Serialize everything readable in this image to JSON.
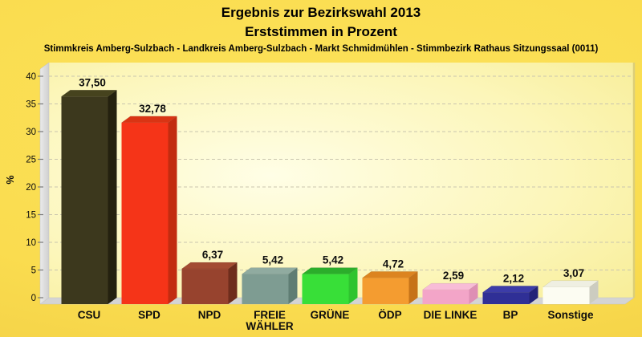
{
  "header": {
    "title": "Ergebnis zur Bezirkswahl 2013",
    "subtitle": "Erststimmen in Prozent",
    "description": "Stimmkreis Amberg-Sulzbach - Landkreis Amberg-Sulzbach - Markt Schmidmühlen - Stimmbezirk Rathaus Sitzungssaal (0011)"
  },
  "chart_data": {
    "type": "bar",
    "style": "3d-column",
    "title": "Ergebnis zur Bezirkswahl 2013",
    "subtitle": "Erststimmen in Prozent",
    "annotation": "Stimmkreis Amberg-Sulzbach - Landkreis Amberg-Sulzbach - Markt Schmidmühlen - Stimmbezirk Rathaus Sitzungssaal (0011)",
    "ylabel": "%",
    "xlabel": "",
    "ylim": [
      0,
      42.5
    ],
    "yticks": [
      0,
      5,
      10,
      15,
      20,
      25,
      30,
      35,
      40
    ],
    "grid": "horizontal-dashed-every-5",
    "legend": "none",
    "categories": [
      "CSU",
      "SPD",
      "NPD",
      "FREIE WÄHLER",
      "GRÜNE",
      "ÖDP",
      "DIE LINKE",
      "BP",
      "Sonstige"
    ],
    "categories_lines": [
      [
        "CSU"
      ],
      [
        "SPD"
      ],
      [
        "NPD"
      ],
      [
        "FREIE",
        "WÄHLER"
      ],
      [
        "GRÜNE"
      ],
      [
        "ÖDP"
      ],
      [
        "DIE LINKE"
      ],
      [
        "BP"
      ],
      [
        "Sonstige"
      ]
    ],
    "values": [
      37.5,
      32.78,
      6.37,
      5.42,
      5.42,
      4.72,
      2.59,
      2.12,
      3.07
    ],
    "value_labels": [
      "37,50",
      "32,78",
      "6,37",
      "5,42",
      "5,42",
      "4,72",
      "2,59",
      "2,12",
      "3,07"
    ],
    "bar_colors": [
      {
        "front": "#3C381D",
        "top": "#46431E",
        "side": "#24210F"
      },
      {
        "front": "#F53418",
        "top": "#D93414",
        "side": "#C22C10"
      },
      {
        "front": "#97432E",
        "top": "#A34C33",
        "side": "#6E2D1C"
      },
      {
        "front": "#7E9C92",
        "top": "#90ABA0",
        "side": "#5F7D73"
      },
      {
        "front": "#38DF38",
        "top": "#2BAD2B",
        "side": "#2FC42F"
      },
      {
        "front": "#F49C30",
        "top": "#DC8420",
        "side": "#C67318"
      },
      {
        "front": "#F3A5C8",
        "top": "#F8BCD7",
        "side": "#DE8FB4"
      },
      {
        "front": "#2F2F96",
        "top": "#3C3CA8",
        "side": "#232378"
      },
      {
        "front": "#FCFCF2",
        "top": "#EFEFE2",
        "side": "#CCCCC0"
      }
    ],
    "layout": {
      "colors": {
        "page_background": "#FADC4F",
        "plot_background_light": "#FFFEE6",
        "plot_background_dark": "#F6EB8E",
        "wall": "#DFDFDF",
        "floor": "#D4D4D4",
        "gridline": "#C9C5AE",
        "plot_right_border": "#DBCE78",
        "text": "#000000"
      }
    }
  }
}
